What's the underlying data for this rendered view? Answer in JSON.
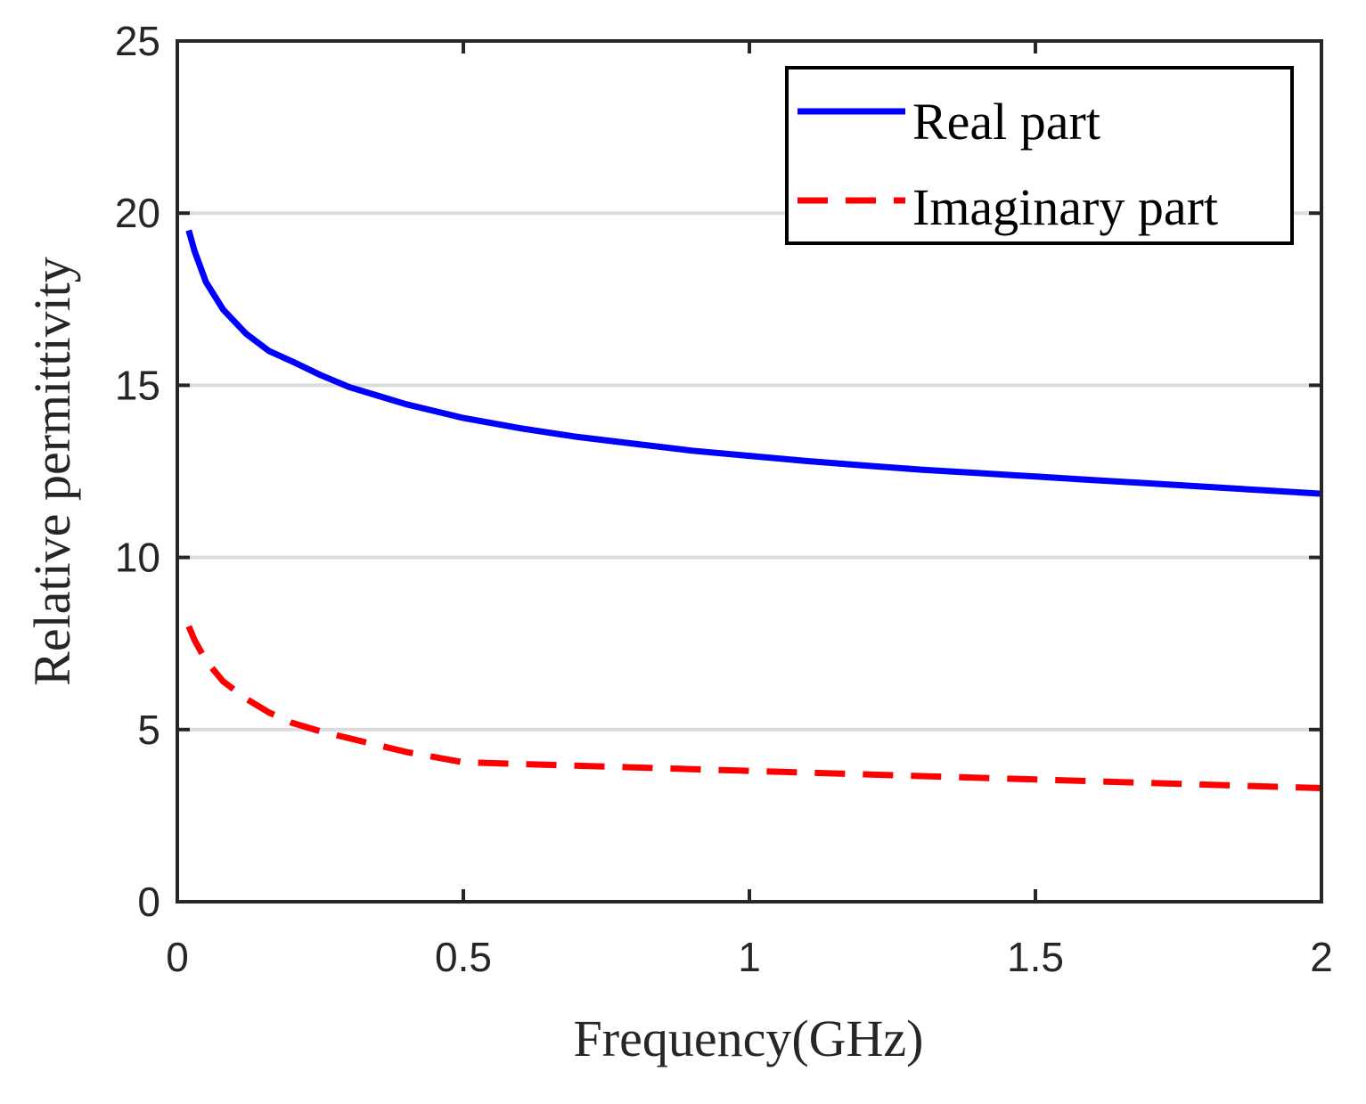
{
  "chart_data": {
    "type": "line",
    "title": "",
    "xlabel": "Frequency(GHz)",
    "ylabel": "Relative permittivity",
    "xlim": [
      0,
      2
    ],
    "ylim": [
      0,
      25
    ],
    "x_ticks": [
      0,
      0.5,
      1,
      1.5,
      2
    ],
    "x_tick_labels": [
      "0",
      "0.5",
      "1",
      "1.5",
      "2"
    ],
    "y_ticks": [
      0,
      5,
      10,
      15,
      20,
      25
    ],
    "y_tick_labels": [
      "0",
      "5",
      "10",
      "15",
      "20",
      "25"
    ],
    "grid": "horizontal",
    "legend_position": "top-right",
    "series": [
      {
        "name": "Real part",
        "style": "solid",
        "color": "#0000ff",
        "x": [
          0.02,
          0.03,
          0.05,
          0.08,
          0.12,
          0.16,
          0.2,
          0.25,
          0.3,
          0.35,
          0.4,
          0.45,
          0.5,
          0.6,
          0.7,
          0.8,
          0.9,
          1.0,
          1.1,
          1.2,
          1.3,
          1.4,
          1.5,
          1.6,
          1.7,
          1.8,
          1.9,
          2.0
        ],
        "y": [
          19.5,
          18.9,
          18.0,
          17.2,
          16.5,
          16.0,
          15.7,
          15.3,
          14.95,
          14.7,
          14.45,
          14.25,
          14.05,
          13.75,
          13.5,
          13.3,
          13.1,
          12.95,
          12.8,
          12.67,
          12.55,
          12.45,
          12.35,
          12.25,
          12.15,
          12.05,
          11.95,
          11.85
        ]
      },
      {
        "name": "Imaginary part",
        "style": "dashed",
        "color": "#ff0000",
        "x": [
          0.02,
          0.03,
          0.05,
          0.08,
          0.12,
          0.16,
          0.2,
          0.25,
          0.3,
          0.35,
          0.4,
          0.45,
          0.5,
          0.6,
          0.7,
          0.8,
          0.9,
          1.0,
          1.1,
          1.2,
          1.3,
          1.4,
          1.5,
          1.6,
          1.7,
          1.8,
          1.9,
          2.0
        ],
        "y": [
          8.0,
          7.6,
          7.0,
          6.4,
          5.9,
          5.5,
          5.2,
          4.95,
          4.75,
          4.55,
          4.35,
          4.2,
          4.05,
          4.0,
          3.95,
          3.9,
          3.85,
          3.8,
          3.75,
          3.7,
          3.65,
          3.6,
          3.55,
          3.5,
          3.45,
          3.4,
          3.35,
          3.3
        ]
      }
    ]
  },
  "colors": {
    "axis": "#262626",
    "grid": "#dcdcdc",
    "background": "#ffffff"
  }
}
